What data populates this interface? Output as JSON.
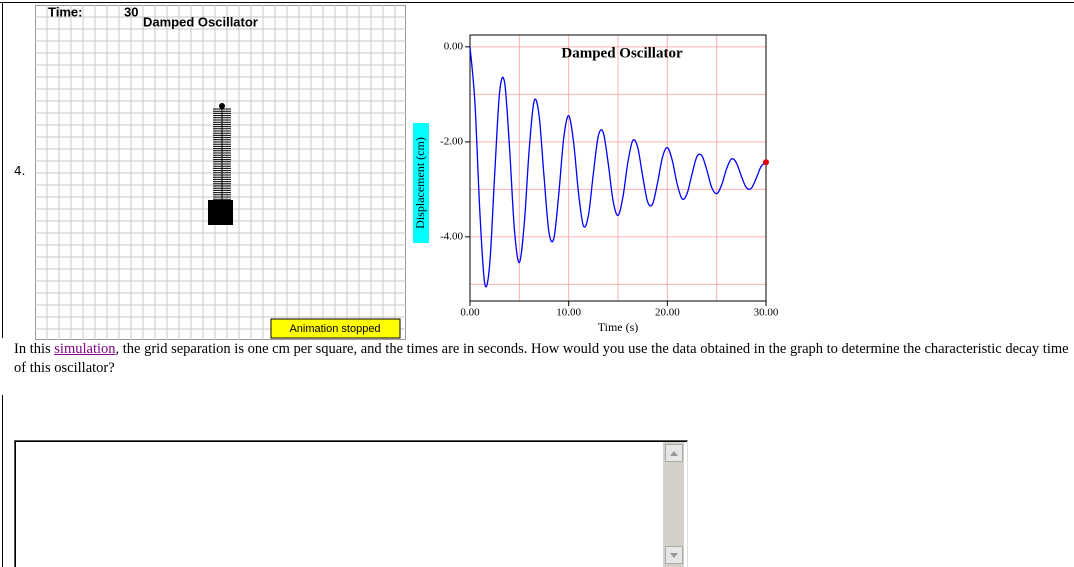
{
  "question": {
    "number": "4.",
    "text_before": "In this ",
    "link": "simulation",
    "text_after": ", the grid separation is one cm per square, and the times are in seconds. How would you use the data obtained in the graph to determine the characteristic decay time of this oscillator?"
  },
  "animation": {
    "time_label": "Time:",
    "time": 30,
    "title": "Damped Oscillator",
    "status": "Animation stopped"
  },
  "chart_data": {
    "type": "line",
    "title": "Damped Oscillator",
    "x_label": "Time (s)",
    "y_label": "Displacement (cm)",
    "x": [
      0,
      0.5,
      1,
      1.5,
      2,
      2.5,
      3,
      3.5,
      4,
      4.5,
      5,
      5.5,
      6,
      6.5,
      7,
      7.5,
      8,
      8.5,
      9,
      9.5,
      10,
      10.5,
      11,
      11.5,
      12,
      12.5,
      13,
      13.5,
      14,
      14.5,
      15,
      15.5,
      16,
      16.5,
      17,
      17.5,
      18,
      18.5,
      19,
      19.5,
      20,
      20.5,
      21,
      21.5,
      22,
      22.5,
      23,
      23.5,
      24,
      24.5,
      25,
      25.5,
      26,
      26.5,
      27,
      27.5,
      28,
      28.5,
      29,
      29.5,
      30
    ],
    "series": [
      {
        "color": "#0000ff",
        "values": [
          0,
          -1.18,
          -3.48,
          -4.99,
          -4.57,
          -2.69,
          -0.96,
          -0.74,
          -2.1,
          -3.84,
          -4.54,
          -3.72,
          -2.16,
          -1.14,
          -1.44,
          -2.72,
          -3.9,
          -4.03,
          -3.09,
          -1.92,
          -1.45,
          -2.01,
          -3.08,
          -3.77,
          -3.55,
          -2.67,
          -1.88,
          -1.8,
          -2.44,
          -3.24,
          -3.55,
          -3.16,
          -2.43,
          -1.97,
          -2.12,
          -2.72,
          -3.26,
          -3.31,
          -2.87,
          -2.33,
          -2.12,
          -2.39,
          -2.89,
          -3.2,
          -3.09,
          -2.68,
          -2.31,
          -2.29,
          -2.59,
          -2.96,
          -3.09,
          -2.91,
          -2.57,
          -2.36,
          -2.44,
          -2.72,
          -2.96,
          -2.98,
          -2.77,
          -2.52,
          -2.43
        ]
      }
    ],
    "end_marker_color": "#e00000",
    "grid_color": "#ffb0b0",
    "xlim": [
      0,
      30
    ],
    "ylim": [
      -5.35,
      0.25
    ],
    "xticks": [
      {
        "value": 0,
        "label": "0.00"
      },
      {
        "value": 10,
        "label": "10.00"
      },
      {
        "value": 20,
        "label": "20.00"
      },
      {
        "value": 30,
        "label": "30.00"
      }
    ],
    "yticks": [
      {
        "value": 0,
        "label": "0.00"
      },
      {
        "value": -2,
        "label": "-2.00"
      },
      {
        "value": -4,
        "label": "-4.00"
      }
    ]
  }
}
